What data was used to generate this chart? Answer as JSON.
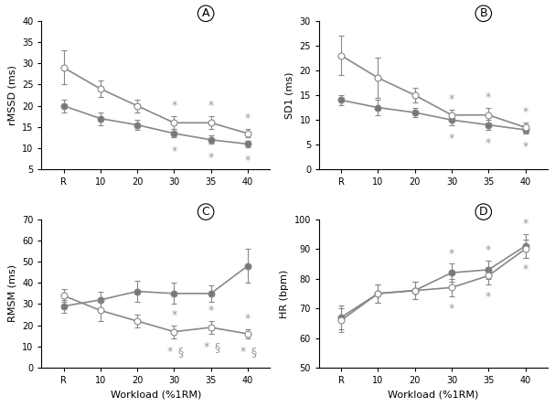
{
  "x_labels": [
    "R",
    "10",
    "20",
    "30",
    "35",
    "40"
  ],
  "x_positions": [
    0,
    1,
    2,
    3,
    4,
    5
  ],
  "A_open_y": [
    29,
    24,
    20,
    16,
    16,
    13.5
  ],
  "A_open_err": [
    4,
    2,
    1.5,
    1.5,
    1.5,
    1
  ],
  "A_closed_y": [
    20,
    17,
    15.5,
    13.5,
    12,
    11
  ],
  "A_closed_err": [
    1.5,
    1.5,
    1.2,
    1,
    1,
    0.8
  ],
  "A_stars_open": [
    false,
    false,
    false,
    true,
    true,
    true
  ],
  "A_stars_closed": [
    false,
    false,
    false,
    true,
    true,
    true
  ],
  "A_ylim": [
    5,
    40
  ],
  "A_yticks": [
    5,
    10,
    15,
    20,
    25,
    30,
    35,
    40
  ],
  "A_ylabel": "rMSSD (ms)",
  "B_open_y": [
    23,
    18.5,
    15,
    11,
    11,
    8.5
  ],
  "B_open_err": [
    4,
    4,
    1.5,
    1,
    1.5,
    1
  ],
  "B_closed_y": [
    14,
    12.5,
    11.5,
    10,
    9,
    8
  ],
  "B_closed_err": [
    1,
    1.5,
    1,
    1,
    1,
    0.8
  ],
  "B_stars_open": [
    false,
    false,
    false,
    true,
    true,
    true
  ],
  "B_stars_closed": [
    false,
    false,
    false,
    true,
    true,
    true
  ],
  "B_ylim": [
    0,
    30
  ],
  "B_yticks": [
    0,
    5,
    10,
    15,
    20,
    25,
    30
  ],
  "B_ylabel": "SD1 (ms)",
  "C_open_y": [
    34,
    27,
    22,
    17,
    19,
    16
  ],
  "C_open_err": [
    3,
    5,
    3,
    3,
    3,
    2
  ],
  "C_closed_y": [
    29,
    32,
    36,
    35,
    35,
    48
  ],
  "C_closed_err": [
    3,
    4,
    5,
    5,
    4,
    8
  ],
  "C_stars_open": [
    false,
    false,
    false,
    true,
    true,
    true
  ],
  "C_section_marks": [
    false,
    false,
    false,
    true,
    true,
    true
  ],
  "C_ylim": [
    0,
    70
  ],
  "C_yticks": [
    0,
    10,
    20,
    30,
    40,
    50,
    60,
    70
  ],
  "C_ylabel": "RMSM (ms)",
  "D_open_y": [
    66,
    75,
    76,
    77,
    81,
    90
  ],
  "D_open_err": [
    4,
    3,
    3,
    3,
    3,
    3
  ],
  "D_closed_y": [
    67,
    75,
    76,
    82,
    83,
    91
  ],
  "D_closed_err": [
    4,
    3,
    3,
    3,
    3,
    4
  ],
  "D_stars_open": [
    false,
    false,
    false,
    true,
    true,
    true
  ],
  "D_stars_closed": [
    false,
    false,
    false,
    true,
    true,
    true
  ],
  "D_ylim": [
    50,
    100
  ],
  "D_yticks": [
    50,
    60,
    70,
    80,
    90,
    100
  ],
  "D_ylabel": "HR (bpm)",
  "xlabel": "Workload (%1RM)",
  "line_color": "#888888",
  "open_face": "white",
  "closed_face": "#777777",
  "star_color": "#999999",
  "linewidth": 1.2,
  "markersize": 5,
  "fontsize_label": 8,
  "fontsize_tick": 7,
  "fontsize_star": 9,
  "capsize": 2,
  "elinewidth": 0.8
}
